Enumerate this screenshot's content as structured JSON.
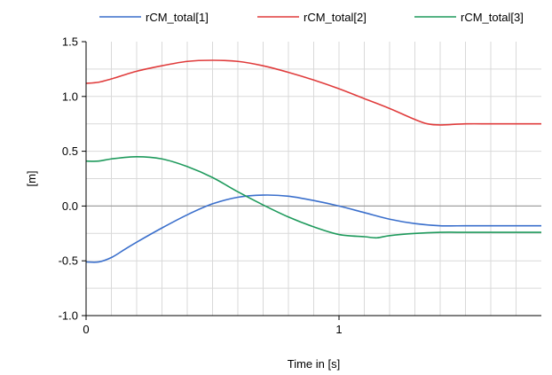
{
  "chart_data": {
    "type": "line",
    "title": "",
    "xlabel": "Time in [s]",
    "ylabel": "[m]",
    "xlim": [
      0,
      1.8
    ],
    "ylim": [
      -1.0,
      1.5
    ],
    "x_ticks": [
      0,
      1
    ],
    "y_ticks": [
      -1.0,
      -0.5,
      0.0,
      0.5,
      1.0,
      1.5
    ],
    "y_tick_labels": [
      "-1.0",
      "-0.5",
      "0.0",
      "0.5",
      "1.0",
      "1.5"
    ],
    "x_tick_labels": [
      "0",
      "1"
    ],
    "grid": true,
    "legend_position": "top",
    "series": [
      {
        "name": "rCM_total[1]",
        "color": "#3a6fcc",
        "x": [
          0,
          0.05,
          0.1,
          0.15,
          0.2,
          0.3,
          0.4,
          0.5,
          0.6,
          0.7,
          0.8,
          0.9,
          1.0,
          1.1,
          1.2,
          1.3,
          1.4,
          1.5,
          1.6,
          1.7,
          1.8
        ],
        "y": [
          -0.51,
          -0.51,
          -0.47,
          -0.4,
          -0.33,
          -0.2,
          -0.08,
          0.02,
          0.08,
          0.1,
          0.09,
          0.05,
          0.0,
          -0.06,
          -0.12,
          -0.16,
          -0.18,
          -0.18,
          -0.18,
          -0.18,
          -0.18
        ]
      },
      {
        "name": "rCM_total[2]",
        "color": "#e03c3c",
        "x": [
          0,
          0.05,
          0.1,
          0.2,
          0.3,
          0.4,
          0.5,
          0.6,
          0.7,
          0.8,
          0.9,
          1.0,
          1.1,
          1.2,
          1.3,
          1.35,
          1.4,
          1.5,
          1.6,
          1.7,
          1.8
        ],
        "y": [
          1.12,
          1.13,
          1.16,
          1.23,
          1.28,
          1.32,
          1.33,
          1.32,
          1.28,
          1.22,
          1.15,
          1.07,
          0.98,
          0.89,
          0.79,
          0.75,
          0.74,
          0.75,
          0.75,
          0.75,
          0.75
        ]
      },
      {
        "name": "rCM_total[3]",
        "color": "#1e9a5c",
        "x": [
          0,
          0.05,
          0.1,
          0.2,
          0.3,
          0.4,
          0.5,
          0.6,
          0.7,
          0.8,
          0.9,
          1.0,
          1.1,
          1.15,
          1.2,
          1.3,
          1.4,
          1.5,
          1.6,
          1.7,
          1.8
        ],
        "y": [
          0.41,
          0.41,
          0.43,
          0.45,
          0.43,
          0.36,
          0.26,
          0.13,
          0.01,
          -0.1,
          -0.19,
          -0.26,
          -0.28,
          -0.29,
          -0.27,
          -0.25,
          -0.24,
          -0.24,
          -0.24,
          -0.24,
          -0.24
        ]
      }
    ]
  }
}
